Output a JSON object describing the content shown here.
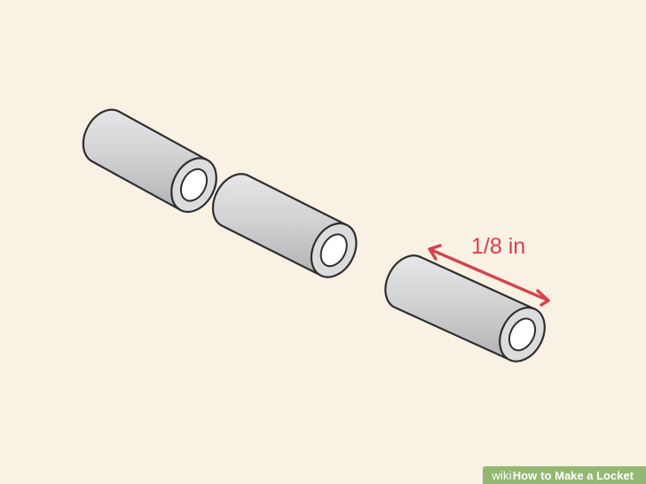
{
  "illustration": {
    "measurement_label": "1/8 in",
    "accent_color": "#d8404a",
    "tube_color": "#c9c9cb",
    "background_color": "#f8f1e4"
  },
  "watermark": {
    "site": "wiki",
    "how": "How",
    "title": "to Make a Locket",
    "color": "#93b874"
  }
}
